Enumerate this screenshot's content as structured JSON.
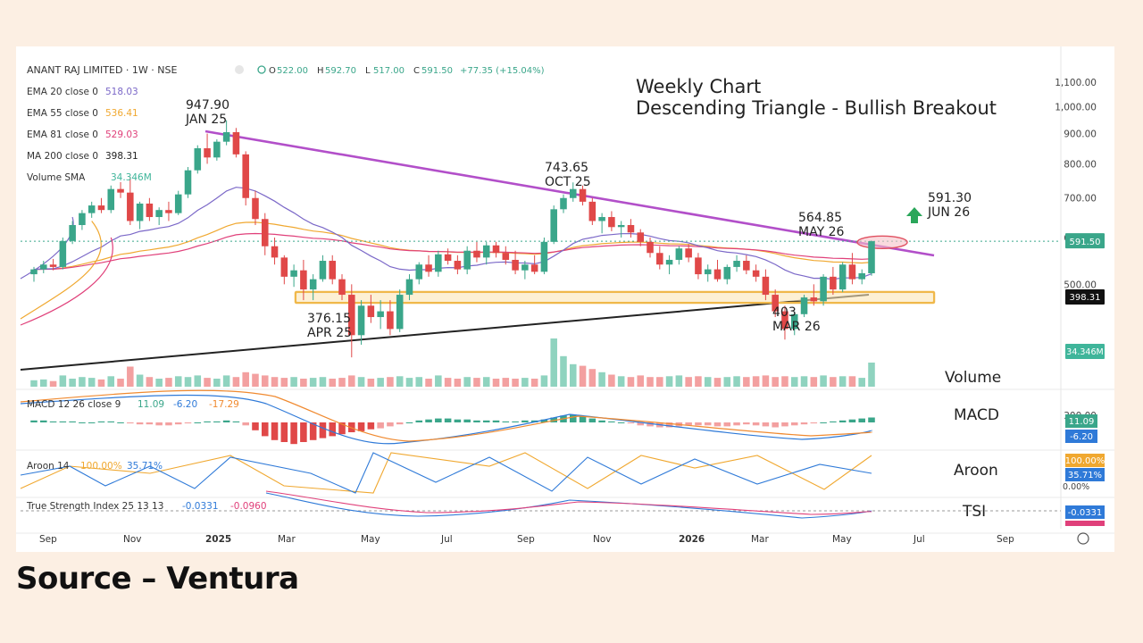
{
  "chart_data": {
    "type": "candlestick",
    "header": {
      "symbol": "ANANT RAJ LIMITED · 1W · NSE",
      "ohlc": [
        {
          "key": "O",
          "value": "522.00"
        },
        {
          "key": "H",
          "value": "592.70"
        },
        {
          "key": "L",
          "value": "517.00"
        },
        {
          "key": "C",
          "value": "591.50"
        }
      ],
      "change": "+77.35 (+15.04%)"
    },
    "title_lines": [
      "Weekly Chart",
      "Descending Triangle - Bullish Breakout"
    ],
    "indicators_legend": [
      {
        "label": "EMA 20 close 0",
        "value": "518.03",
        "color": "#7b68c8"
      },
      {
        "label": "EMA 55 close 0",
        "value": "536.41",
        "color": "#f0a830"
      },
      {
        "label": "EMA 81 close 0",
        "value": "529.03",
        "color": "#e0407a"
      },
      {
        "label": "MA 200 close 0",
        "value": "398.31",
        "color": "#222222"
      },
      {
        "label": "Volume SMA",
        "value": "34.346M",
        "color": "#3fb59a"
      }
    ],
    "price_axis": {
      "scale": "log",
      "ticks": [
        "1,100.00",
        "1,000.00",
        "900.00",
        "800.00",
        "700.00",
        "600.00",
        "500.00",
        "300.00"
      ],
      "tick_values": [
        1100,
        1000,
        900,
        800,
        700,
        600,
        500,
        300
      ],
      "range": [
        280,
        1180
      ]
    },
    "x_axis": {
      "ticks": [
        "Sep",
        "Nov",
        "2025",
        "Mar",
        "May",
        "Jul",
        "Sep",
        "Nov",
        "2026",
        "Mar",
        "May",
        "Jul",
        "Sep"
      ],
      "bold": [
        "2025",
        "2026"
      ]
    },
    "annotations": [
      {
        "lines": [
          "947.90",
          "JAN 25"
        ],
        "price": 947.9
      },
      {
        "lines": [
          "743.65",
          "OCT 25"
        ],
        "price": 743.65
      },
      {
        "lines": [
          "376.15",
          "APR 25"
        ],
        "price": 376.15
      },
      {
        "lines": [
          "564.85",
          "MAY 26"
        ],
        "price": 564.85
      },
      {
        "lines": [
          "403",
          "MAR 26"
        ],
        "price": 403
      },
      {
        "lines": [
          "591.30",
          "JUN 26"
        ],
        "price": 591.3
      }
    ],
    "price_badges": {
      "last": "591.50",
      "ma200": "398.31",
      "volume": "34.346M"
    },
    "panels": {
      "volume": {
        "label": "Volume"
      },
      "macd": {
        "label": "MACD",
        "legend": "MACD 12 26 close 9",
        "values": [
          "11.09",
          "-6.20",
          "-17.29"
        ],
        "badges": [
          "11.09",
          "-6.20"
        ]
      },
      "aroon": {
        "label": "Aroon",
        "legend": "Aroon 14",
        "values": [
          "100.00%",
          "35.71%"
        ],
        "badges": [
          "100.00%",
          "35.71%"
        ],
        "axis_zero": "0.00%"
      },
      "tsi": {
        "label": "TSI",
        "legend": "True Strength Index 25 13 13",
        "values": [
          "-0.0331",
          "-0.0960"
        ],
        "badges": [
          "-0.0331"
        ]
      }
    },
    "colors": {
      "up": "#3aa68a",
      "down": "#e04848",
      "trendline": "#b24fc9",
      "support_zone": "#f0b84a",
      "ma200": "#222222",
      "volume_up": "#8fd3bf",
      "volume_down": "#f3a0a0"
    }
  },
  "source": "Source – Ventura"
}
